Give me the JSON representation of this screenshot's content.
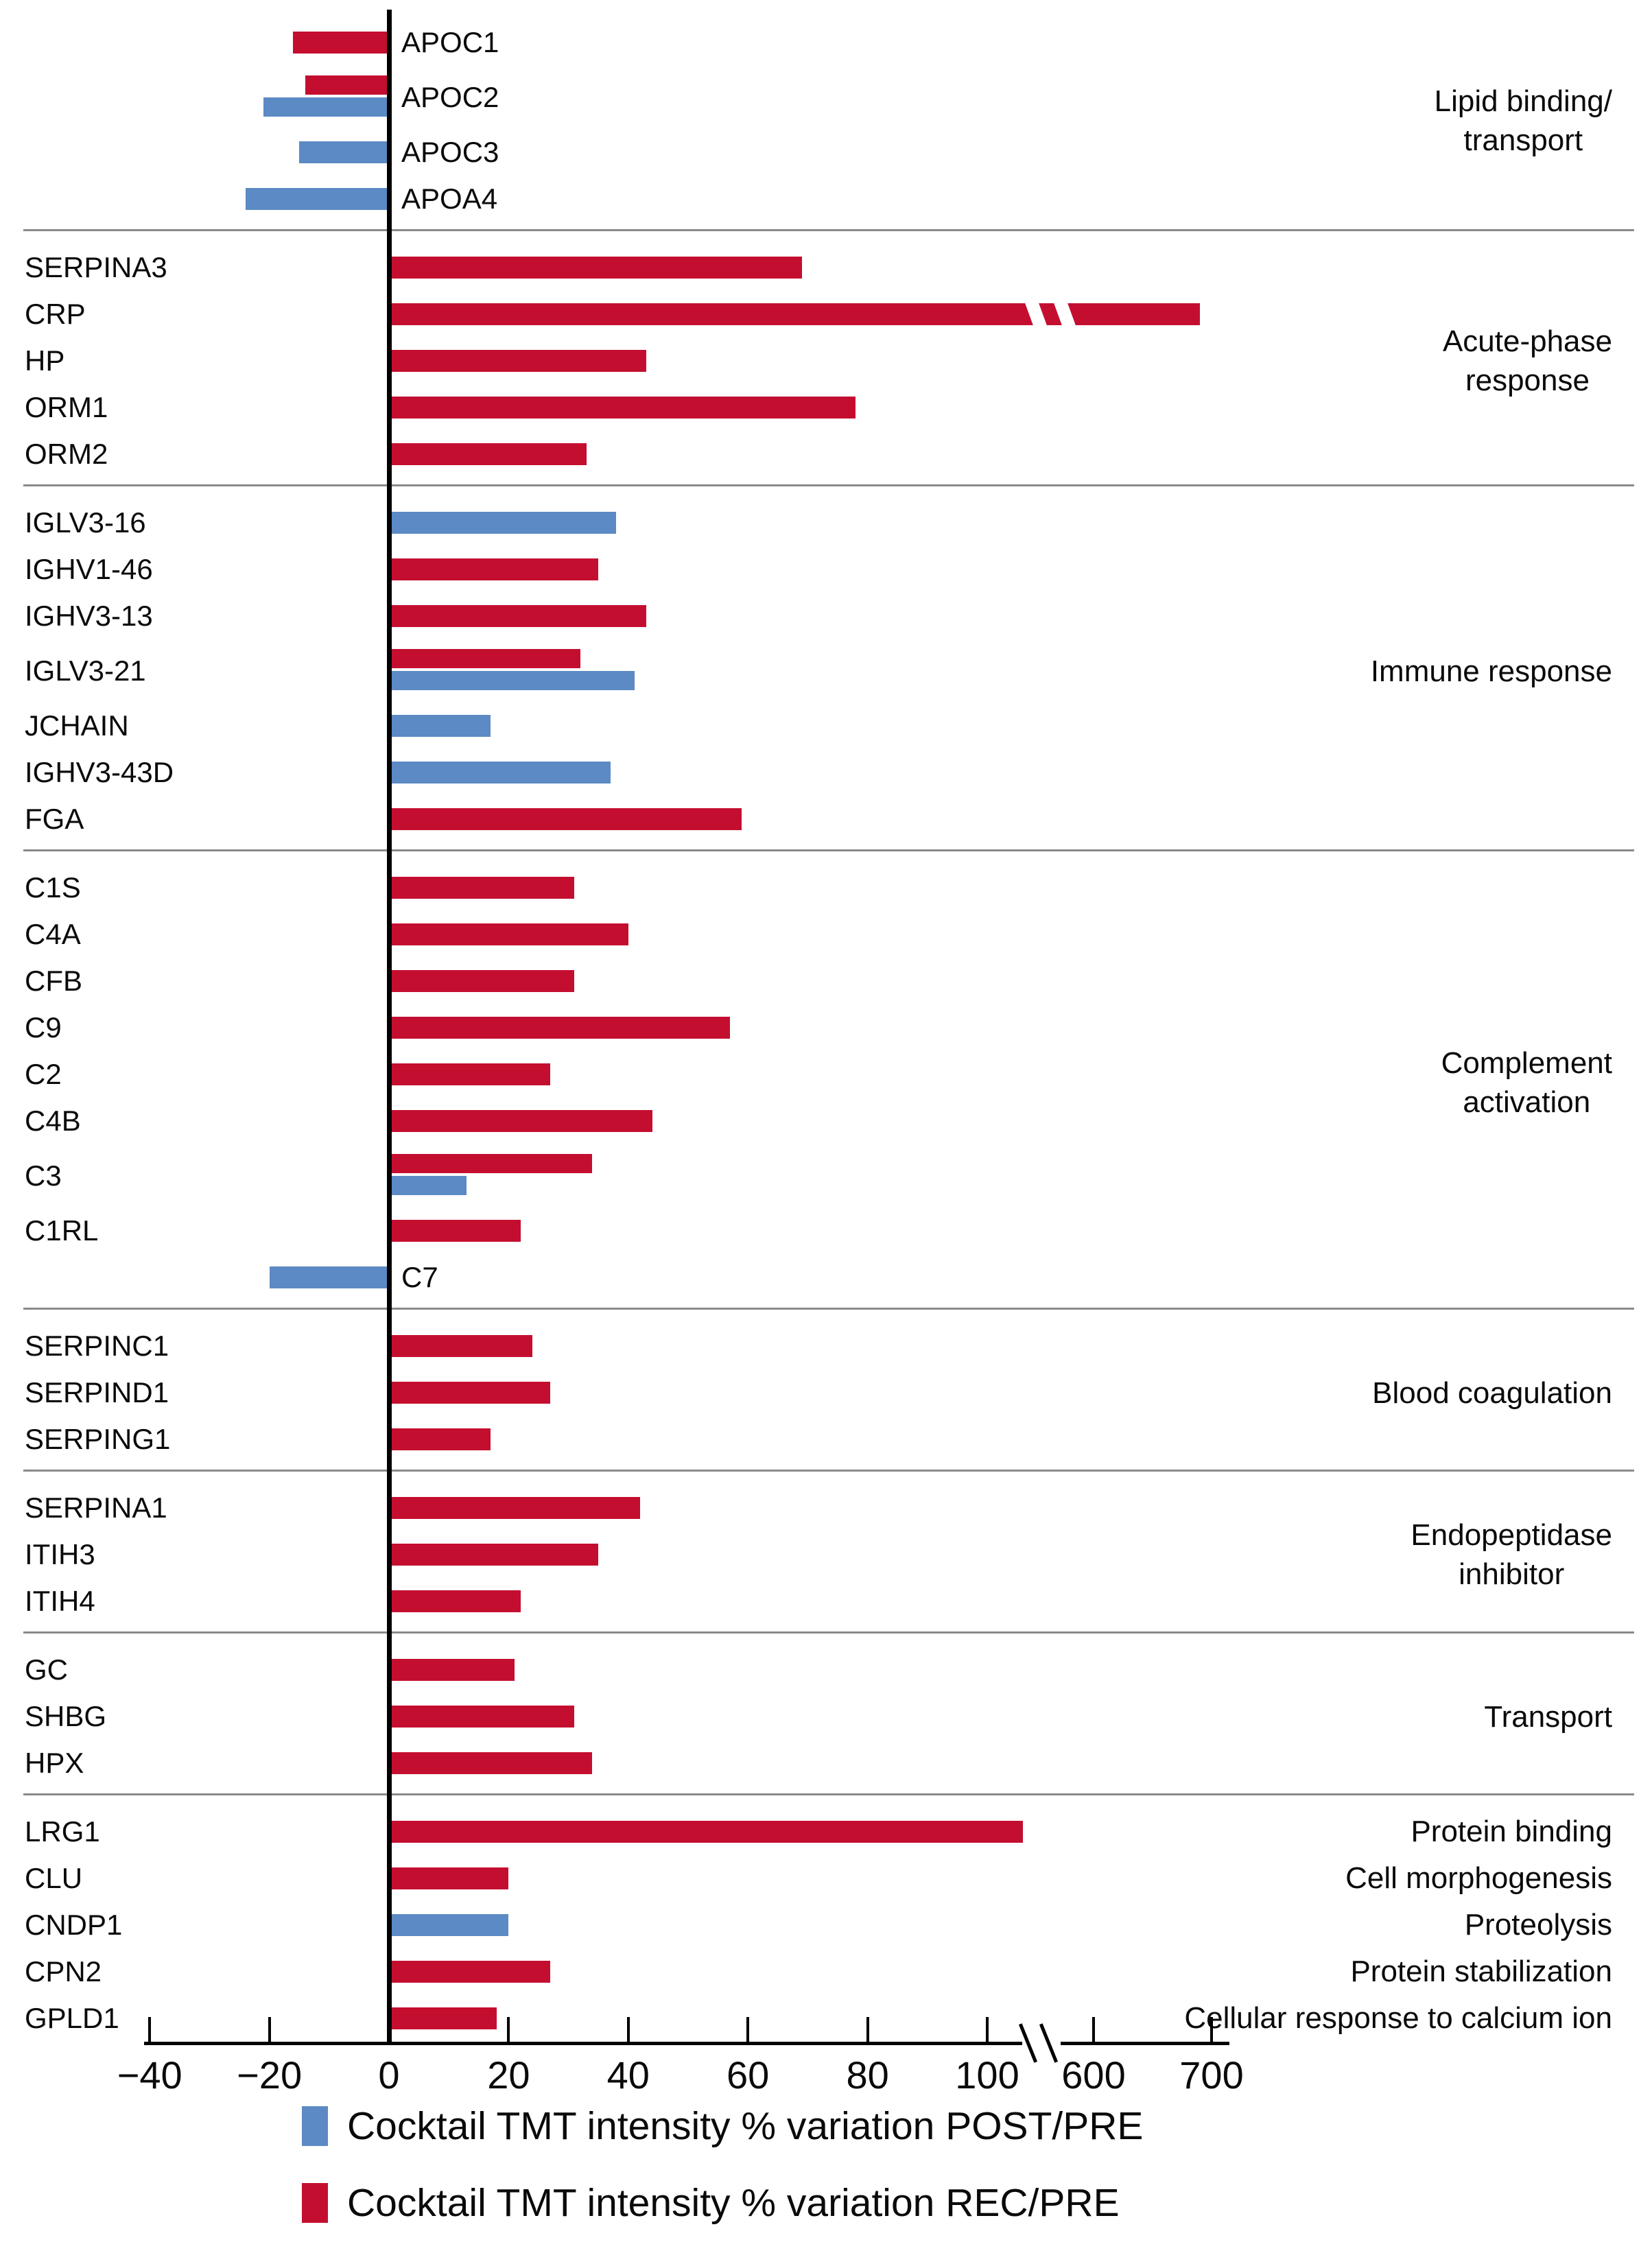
{
  "figure": {
    "colors": {
      "post_pre_blue": "#5B8AC4",
      "rec_pre_red": "#C40E30",
      "separator_gray": "#8a8a8a",
      "axis_black": "#000000",
      "text": "#0a0a0a"
    }
  },
  "chart_data": {
    "type": "bar",
    "orientation": "horizontal",
    "title": "",
    "xlabel": "",
    "ylabel": "",
    "value_unit": "% variation of TMT intensity",
    "x_axis": {
      "tick_values": [
        -40,
        -20,
        0,
        20,
        40,
        60,
        80,
        100,
        600,
        700
      ],
      "tick_labels": [
        "−40",
        "−20",
        "0",
        "20",
        "40",
        "60",
        "80",
        "100",
        "600",
        "700"
      ],
      "break_between": [
        100,
        600
      ],
      "lim": [
        -44,
        710
      ],
      "grid": false
    },
    "legend_position": "bottom",
    "legend": [
      {
        "series": "POST/PRE",
        "label": "Cocktail TMT intensity % variation POST/PRE",
        "color": "#5B8AC4"
      },
      {
        "series": "REC/PRE",
        "label": "Cocktail TMT intensity % variation REC/PRE",
        "color": "#C40E30"
      }
    ],
    "groups": [
      {
        "category": "Lipid binding/ transport",
        "label_lines": [
          "Lipid binding/",
          "transport"
        ],
        "proteins": [
          {
            "name": "APOC1",
            "label_side": "right",
            "bars": [
              {
                "series": "REC/PRE",
                "value": -16
              }
            ]
          },
          {
            "name": "APOC2",
            "label_side": "right",
            "bars": [
              {
                "series": "REC/PRE",
                "value": -14
              },
              {
                "series": "POST/PRE",
                "value": -21
              }
            ]
          },
          {
            "name": "APOC3",
            "label_side": "right",
            "bars": [
              {
                "series": "POST/PRE",
                "value": -15
              }
            ]
          },
          {
            "name": "APOA4",
            "label_side": "right",
            "bars": [
              {
                "series": "POST/PRE",
                "value": -24
              }
            ]
          }
        ]
      },
      {
        "category": "Acute-phase response",
        "label_lines": [
          "Acute-phase",
          "response"
        ],
        "proteins": [
          {
            "name": "SERPINA3",
            "label_side": "left",
            "bars": [
              {
                "series": "REC/PRE",
                "value": 69
              }
            ]
          },
          {
            "name": "CRP",
            "label_side": "left",
            "bars": [
              {
                "series": "REC/PRE",
                "value": 690,
                "broken": true
              }
            ]
          },
          {
            "name": "HP",
            "label_side": "left",
            "bars": [
              {
                "series": "REC/PRE",
                "value": 43
              }
            ]
          },
          {
            "name": "ORM1",
            "label_side": "left",
            "bars": [
              {
                "series": "REC/PRE",
                "value": 78
              }
            ]
          },
          {
            "name": "ORM2",
            "label_side": "left",
            "bars": [
              {
                "series": "REC/PRE",
                "value": 33
              }
            ]
          }
        ]
      },
      {
        "category": "Immune response",
        "label_lines": [
          "Immune response"
        ],
        "proteins": [
          {
            "name": "IGLV3-16",
            "label_side": "left",
            "bars": [
              {
                "series": "POST/PRE",
                "value": 38
              }
            ]
          },
          {
            "name": "IGHV1-46",
            "label_side": "left",
            "bars": [
              {
                "series": "REC/PRE",
                "value": 35
              }
            ]
          },
          {
            "name": "IGHV3-13",
            "label_side": "left",
            "bars": [
              {
                "series": "REC/PRE",
                "value": 43
              }
            ]
          },
          {
            "name": "IGLV3-21",
            "label_side": "left",
            "bars": [
              {
                "series": "REC/PRE",
                "value": 32
              },
              {
                "series": "POST/PRE",
                "value": 41
              }
            ]
          },
          {
            "name": "JCHAIN",
            "label_side": "left",
            "bars": [
              {
                "series": "POST/PRE",
                "value": 17
              }
            ]
          },
          {
            "name": "IGHV3-43D",
            "label_side": "left",
            "bars": [
              {
                "series": "POST/PRE",
                "value": 37
              }
            ]
          },
          {
            "name": "FGA",
            "label_side": "left",
            "bars": [
              {
                "series": "REC/PRE",
                "value": 59
              }
            ]
          }
        ]
      },
      {
        "category": "Complement activation",
        "label_lines": [
          "Complement",
          "activation"
        ],
        "proteins": [
          {
            "name": "C1S",
            "label_side": "left",
            "bars": [
              {
                "series": "REC/PRE",
                "value": 31
              }
            ]
          },
          {
            "name": "C4A",
            "label_side": "left",
            "bars": [
              {
                "series": "REC/PRE",
                "value": 40
              }
            ]
          },
          {
            "name": "CFB",
            "label_side": "left",
            "bars": [
              {
                "series": "REC/PRE",
                "value": 31
              }
            ]
          },
          {
            "name": "C9",
            "label_side": "left",
            "bars": [
              {
                "series": "REC/PRE",
                "value": 57
              }
            ]
          },
          {
            "name": "C2",
            "label_side": "left",
            "bars": [
              {
                "series": "REC/PRE",
                "value": 27
              }
            ]
          },
          {
            "name": "C4B",
            "label_side": "left",
            "bars": [
              {
                "series": "REC/PRE",
                "value": 44
              }
            ]
          },
          {
            "name": "C3",
            "label_side": "left",
            "bars": [
              {
                "series": "REC/PRE",
                "value": 34
              },
              {
                "series": "POST/PRE",
                "value": 13
              }
            ]
          },
          {
            "name": "C1RL",
            "label_side": "left",
            "bars": [
              {
                "series": "REC/PRE",
                "value": 22
              }
            ]
          },
          {
            "name": "C7",
            "label_side": "right",
            "bars": [
              {
                "series": "POST/PRE",
                "value": -20
              }
            ]
          }
        ]
      },
      {
        "category": "Blood coagulation",
        "label_lines": [
          "Blood coagulation"
        ],
        "proteins": [
          {
            "name": "SERPINC1",
            "label_side": "left",
            "bars": [
              {
                "series": "REC/PRE",
                "value": 24
              }
            ]
          },
          {
            "name": "SERPIND1",
            "label_side": "left",
            "bars": [
              {
                "series": "REC/PRE",
                "value": 27
              }
            ]
          },
          {
            "name": "SERPING1",
            "label_side": "left",
            "bars": [
              {
                "series": "REC/PRE",
                "value": 17
              }
            ]
          }
        ]
      },
      {
        "category": "Endopeptidase inhibitor",
        "label_lines": [
          "Endopeptidase",
          "inhibitor"
        ],
        "proteins": [
          {
            "name": "SERPINA1",
            "label_side": "left",
            "bars": [
              {
                "series": "REC/PRE",
                "value": 42
              }
            ]
          },
          {
            "name": "ITIH3",
            "label_side": "left",
            "bars": [
              {
                "series": "REC/PRE",
                "value": 35
              }
            ]
          },
          {
            "name": "ITIH4",
            "label_side": "left",
            "bars": [
              {
                "series": "REC/PRE",
                "value": 22
              }
            ]
          }
        ]
      },
      {
        "category": "Transport",
        "label_lines": [
          "Transport"
        ],
        "proteins": [
          {
            "name": "GC",
            "label_side": "left",
            "bars": [
              {
                "series": "REC/PRE",
                "value": 21
              }
            ]
          },
          {
            "name": "SHBG",
            "label_side": "left",
            "bars": [
              {
                "series": "REC/PRE",
                "value": 31
              }
            ]
          },
          {
            "name": "HPX",
            "label_side": "left",
            "bars": [
              {
                "series": "REC/PRE",
                "value": 34
              }
            ]
          }
        ]
      },
      {
        "category": null,
        "label_lines": [],
        "per_protein_functions": true,
        "proteins": [
          {
            "name": "LRG1",
            "function": "Protein binding",
            "label_side": "left",
            "bars": [
              {
                "series": "REC/PRE",
                "value": 106
              }
            ]
          },
          {
            "name": "CLU",
            "function": "Cell morphogenesis",
            "label_side": "left",
            "bars": [
              {
                "series": "REC/PRE",
                "value": 20
              }
            ]
          },
          {
            "name": "CNDP1",
            "function": "Proteolysis",
            "label_side": "left",
            "bars": [
              {
                "series": "POST/PRE",
                "value": 20
              }
            ]
          },
          {
            "name": "CPN2",
            "function": "Protein stabilization",
            "label_side": "left",
            "bars": [
              {
                "series": "REC/PRE",
                "value": 27
              }
            ]
          },
          {
            "name": "GPLD1",
            "function": "Cellular response to calcium ion",
            "label_side": "left",
            "bars": [
              {
                "series": "REC/PRE",
                "value": 18
              }
            ]
          }
        ]
      }
    ]
  }
}
